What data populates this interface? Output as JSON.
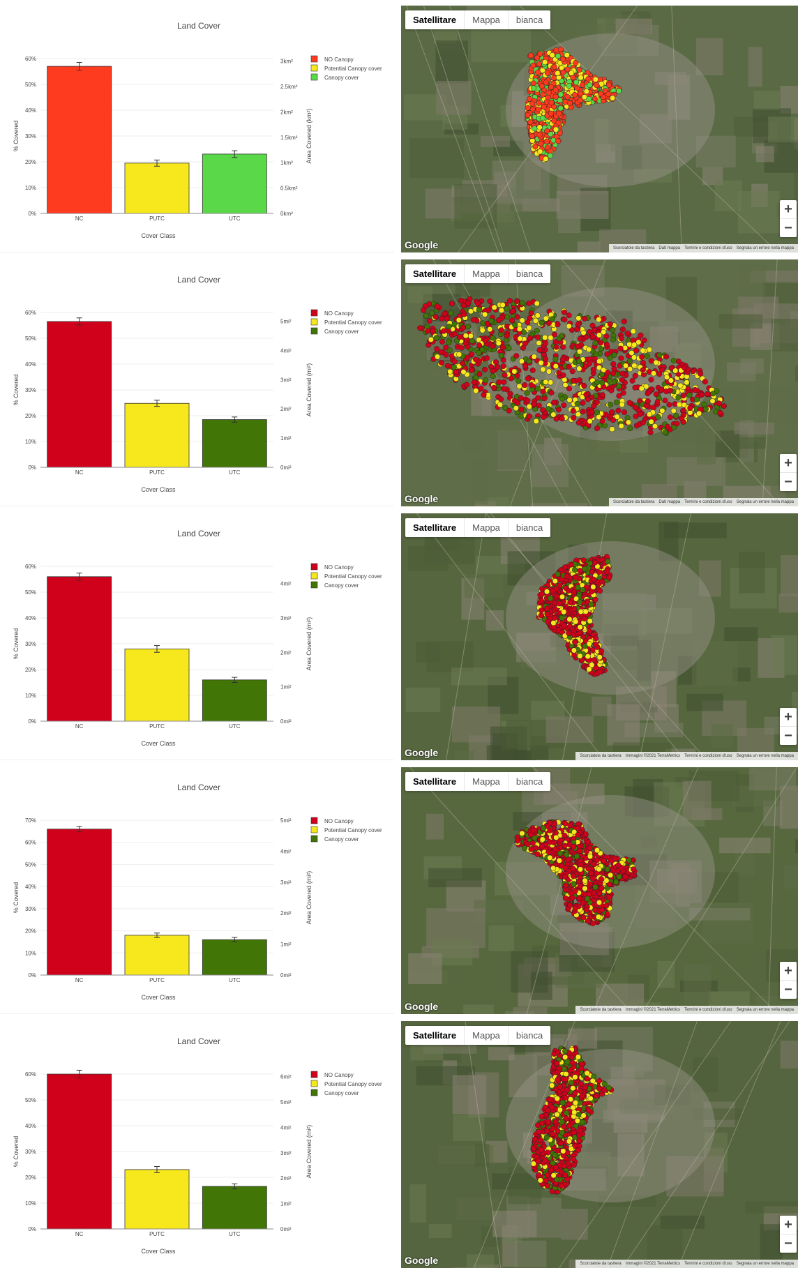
{
  "map_controls": {
    "types": [
      "Satellitare",
      "Mappa",
      "bianca"
    ],
    "zoom_in": "+",
    "zoom_out": "−",
    "logo": "Google"
  },
  "rows": [
    {
      "chart_data": {
        "type": "bar",
        "title": "Land Cover",
        "xlabel": "Cover Class",
        "ylabel": "% Covered",
        "y2label": "Area Covered (km²)",
        "categories": [
          "NC",
          "PUTC",
          "UTC"
        ],
        "values": [
          57,
          19.5,
          23
        ],
        "errors": [
          1.5,
          1.2,
          1.3
        ],
        "colors": [
          "#ff3b1f",
          "#f7e81e",
          "#5ad84a"
        ],
        "ylim": [
          0,
          60
        ],
        "yticks": [
          "0%",
          "10%",
          "20%",
          "30%",
          "40%",
          "50%",
          "60%"
        ],
        "y2ticks": [
          "0km²",
          "0.5km²",
          "1km²",
          "1.5km²",
          "2km²",
          "2.5km²",
          "3km²"
        ],
        "y2max": 3.05,
        "legend": [
          "NO Canopy",
          "Potential Canopy cover",
          "Canopy cover"
        ],
        "legend_position": "top-right"
      },
      "map": {
        "attribution": [
          "Scorciatoie da tastiera",
          "Dati mappa",
          "Termini e condizioni d'uso",
          "Segnala un errore nella mappa"
        ]
      }
    },
    {
      "chart_data": {
        "type": "bar",
        "title": "Land Cover",
        "xlabel": "Cover Class",
        "ylabel": "% Covered",
        "y2label": "Area Covered (mi²)",
        "categories": [
          "NC",
          "PUTC",
          "UTC"
        ],
        "values": [
          56.5,
          24.8,
          18.5
        ],
        "errors": [
          1.4,
          1.2,
          1.0
        ],
        "colors": [
          "#d0021b",
          "#f7e81e",
          "#417505"
        ],
        "ylim": [
          0,
          60
        ],
        "yticks": [
          "0%",
          "10%",
          "20%",
          "30%",
          "40%",
          "50%",
          "60%"
        ],
        "y2ticks": [
          "0mi²",
          "1mi²",
          "2mi²",
          "3mi²",
          "4mi²",
          "5mi²"
        ],
        "y2max": 5.3,
        "legend": [
          "NO Canopy",
          "Potential Canopy cover",
          "Canopy cover"
        ],
        "legend_position": "top-right"
      },
      "map": {
        "attribution": [
          "Scorciatoie da tastiera",
          "Dati mappa",
          "Termini e condizioni d'uso",
          "Segnala un errore nella mappa"
        ]
      }
    },
    {
      "chart_data": {
        "type": "bar",
        "title": "Land Cover",
        "xlabel": "Cover Class",
        "ylabel": "% Covered",
        "y2label": "Area Covered (mi²)",
        "categories": [
          "NC",
          "PUTC",
          "UTC"
        ],
        "values": [
          56,
          28,
          16
        ],
        "errors": [
          1.4,
          1.3,
          1.0
        ],
        "colors": [
          "#d0021b",
          "#f7e81e",
          "#417505"
        ],
        "ylim": [
          0,
          60
        ],
        "yticks": [
          "0%",
          "10%",
          "20%",
          "30%",
          "40%",
          "50%",
          "60%"
        ],
        "y2ticks": [
          "0mi²",
          "1mi²",
          "2mi²",
          "3mi²",
          "4mi²"
        ],
        "y2max": 4.5,
        "legend": [
          "NO Canopy",
          "Potential Canopy cover",
          "Canopy cover"
        ],
        "legend_position": "top-right"
      },
      "map": {
        "attribution": [
          "Scorciatoie da tastiera",
          "Immagini ©2021 TerraMetrics",
          "Termini e condizioni d'uso",
          "Segnala un errore nella mappa"
        ]
      }
    },
    {
      "chart_data": {
        "type": "bar",
        "title": "Land Cover",
        "xlabel": "Cover Class",
        "ylabel": "% Covered",
        "y2label": "Area Covered (mi²)",
        "categories": [
          "NC",
          "PUTC",
          "UTC"
        ],
        "values": [
          66,
          18,
          16
        ],
        "errors": [
          1.2,
          1.0,
          1.0
        ],
        "colors": [
          "#d0021b",
          "#f7e81e",
          "#417505"
        ],
        "ylim": [
          0,
          70
        ],
        "yticks": [
          "0%",
          "10%",
          "20%",
          "30%",
          "40%",
          "50%",
          "60%",
          "70%"
        ],
        "y2ticks": [
          "0mi²",
          "1mi²",
          "2mi²",
          "3mi²",
          "4mi²",
          "5mi²"
        ],
        "y2max": 5.0,
        "legend": [
          "NO Canopy",
          "Potential Canopy cover",
          "Canopy cover"
        ],
        "legend_position": "top-right"
      },
      "map": {
        "attribution": [
          "Scorciatoie da tastiera",
          "Immagini ©2021 TerraMetrics",
          "Termini e condizioni d'uso",
          "Segnala un errore nella mappa"
        ]
      }
    },
    {
      "chart_data": {
        "type": "bar",
        "title": "Land Cover",
        "xlabel": "Cover Class",
        "ylabel": "% Covered",
        "y2label": "Area Covered (mi²)",
        "categories": [
          "NC",
          "PUTC",
          "UTC"
        ],
        "values": [
          60,
          23,
          16.5
        ],
        "errors": [
          1.5,
          1.2,
          1.0
        ],
        "colors": [
          "#d0021b",
          "#f7e81e",
          "#417505"
        ],
        "ylim": [
          0,
          60
        ],
        "yticks": [
          "0%",
          "10%",
          "20%",
          "30%",
          "40%",
          "50%",
          "60%"
        ],
        "y2ticks": [
          "0mi²",
          "1mi²",
          "2mi²",
          "3mi²",
          "4mi²",
          "5mi²",
          "6mi²"
        ],
        "y2max": 6.1,
        "legend": [
          "NO Canopy",
          "Potential Canopy cover",
          "Canopy cover"
        ],
        "legend_position": "top-right"
      },
      "map": {
        "attribution": [
          "Scorciatoie da tastiera",
          "Immagini ©2021 TerraMetrics",
          "Termini e condizioni d'uso",
          "Segnala un errore nella mappa"
        ]
      }
    }
  ]
}
